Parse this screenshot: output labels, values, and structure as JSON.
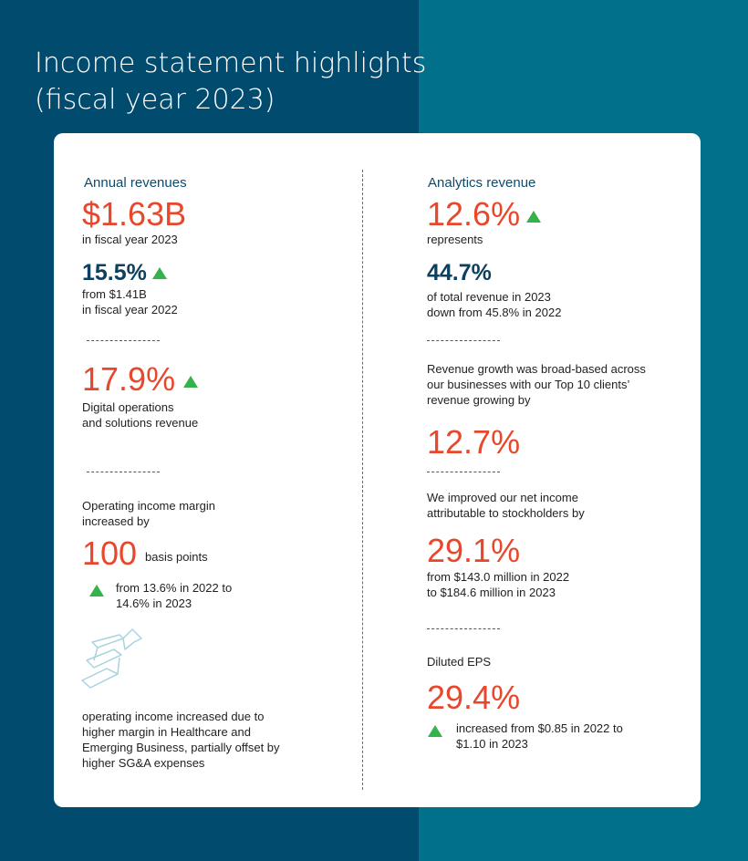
{
  "title_line1": "Income statement highlights",
  "title_line2": "(fiscal year 2023)",
  "left": {
    "annual_label": "Annual revenues",
    "annual_value": "$1.63B",
    "annual_note": "in fiscal year 2023",
    "growth_value": "15.5%",
    "growth_note_1": "from $1.41B",
    "growth_note_2": "in fiscal year 2022",
    "digital_value": "17.9%",
    "digital_note_1": "Digital operations",
    "digital_note_2": "and solutions revenue",
    "opmargin_intro_1": "Operating income margin",
    "opmargin_intro_2": "increased by",
    "opmargin_value": "100",
    "opmargin_unit": "basis points",
    "opmargin_note_1": "from 13.6% in 2022 to",
    "opmargin_note_2": "14.6% in 2023",
    "opincome_note_1": "operating income increased due to",
    "opincome_note_2": "higher margin in Healthcare and",
    "opincome_note_3": "Emerging Business, partially offset by",
    "opincome_note_4": "higher SG&A expenses"
  },
  "right": {
    "analytics_label": "Analytics revenue",
    "analytics_value": "12.6%",
    "analytics_note": "represents",
    "share_value": "44.7%",
    "share_note_1": "of total revenue in 2023",
    "share_note_2": "down from 45.8% in 2022",
    "growth_intro_1": "Revenue growth was broad-based across",
    "growth_intro_2": "our businesses with our Top 10 clients’",
    "growth_intro_3": "revenue growing by",
    "top10_value": "12.7%",
    "netincome_intro_1": "We improved our net income",
    "netincome_intro_2": "attributable to stockholders by",
    "netincome_value": "29.1%",
    "netincome_note_1": "from $143.0 million in 2022",
    "netincome_note_2": "to $184.6 million in 2023",
    "eps_label": "Diluted EPS",
    "eps_value": "29.4%",
    "eps_note_1": "increased from $0.85 in 2022 to",
    "eps_note_2": "$1.10 in 2023"
  },
  "icons": {
    "up_triangle": "up-triangle-icon",
    "growth_arrow": "growth-arrow-icon"
  },
  "colors": {
    "background_dark": "#014b6e",
    "background_teal": "#01708a",
    "highlight_orange": "#e8472b",
    "heading_navy": "#0d3f5e",
    "up_green": "#34b24c"
  }
}
